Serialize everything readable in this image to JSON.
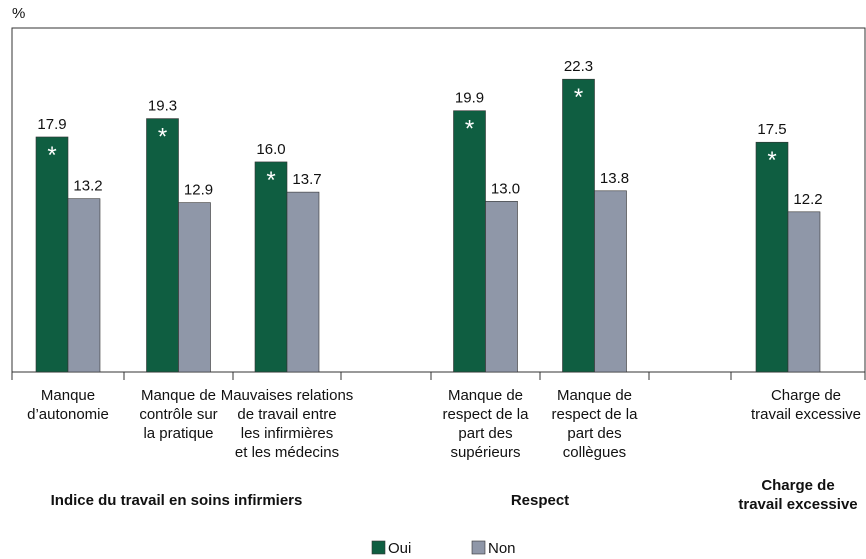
{
  "chart_data": {
    "type": "bar",
    "y_unit": "%",
    "categories": [
      "Manque\nd’autonomie",
      "Manque de\ncontrôle sur\nla pratique",
      "Mauvaises relations\nde travail entre\nles infirmières\net les médecins",
      null,
      "Manque de\nrespect de la\npart des\nsupérieurs",
      "Manque de\nrespect de la\npart des\ncollègues",
      null,
      "Charge de\ntravail excessive"
    ],
    "groups": [
      "Indice du travail en soins infirmiers",
      "Respect",
      "Charge de\ntravail excessive"
    ],
    "series": [
      {
        "name": "Oui",
        "color": "#0f5e41",
        "values": [
          17.9,
          19.3,
          16.0,
          null,
          19.9,
          22.3,
          null,
          17.5
        ],
        "value_labels": [
          "17.9",
          "19.3",
          "16.0",
          null,
          "19.9",
          "22.3",
          null,
          "17.5"
        ],
        "markers": [
          "*",
          "*",
          "*",
          null,
          "*",
          "*",
          null,
          "*"
        ]
      },
      {
        "name": "Non",
        "color": "#8f97a8",
        "values": [
          13.2,
          12.9,
          13.7,
          null,
          13.0,
          13.8,
          null,
          12.2
        ],
        "value_labels": [
          "13.2",
          "12.9",
          "13.7",
          null,
          "13.0",
          "13.8",
          null,
          "12.2"
        ]
      }
    ],
    "ylim": [
      0,
      26.2
    ],
    "legend": "bottom"
  }
}
